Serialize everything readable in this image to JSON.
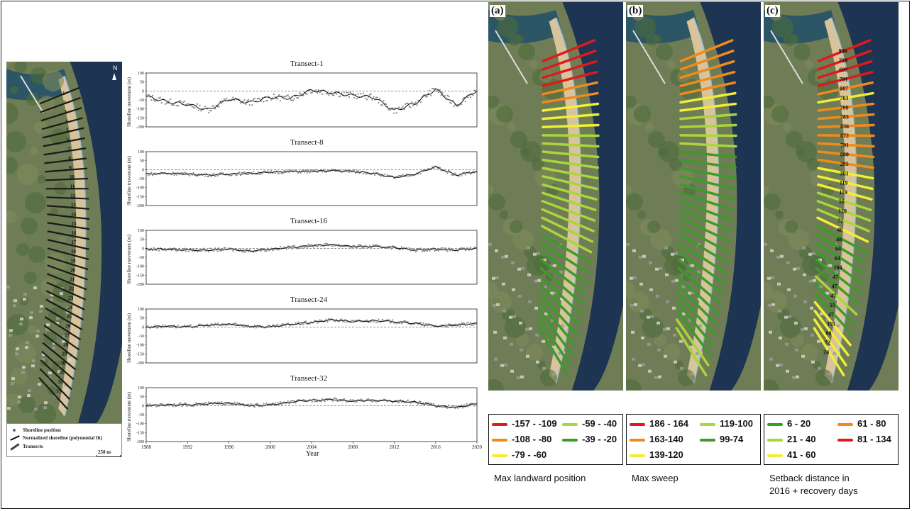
{
  "left_map": {
    "north_label": "N",
    "scale_label": "250 m",
    "transect_numbers": [
      "1",
      "2",
      "3",
      "4",
      "5",
      "6",
      "7",
      "8",
      "9",
      "10",
      "11",
      "12",
      "13",
      "14",
      "15",
      "16",
      "17",
      "18",
      "19",
      "20",
      "21",
      "22",
      "23",
      "24",
      "25",
      "26",
      "27",
      "28",
      "29",
      "30",
      "31",
      "32",
      "33"
    ],
    "legend": {
      "points": "Shoreline position",
      "fit": "Normalized shoreline (polynomial fit)",
      "transects": "Transects"
    }
  },
  "chart_data": [
    {
      "type": "scatter",
      "title": "Transect-1",
      "ylabel": "Shoreline movement (m)",
      "ylim": [
        -200,
        100
      ],
      "xlim": [
        1988,
        2020
      ],
      "y_ticks": [
        "100",
        "50",
        "0",
        "-50",
        "-100",
        "-150",
        "-200"
      ],
      "x": [
        1988,
        1990,
        1992,
        1994,
        1996,
        1998,
        2000,
        2002,
        2004,
        2006,
        2008,
        2010,
        2012,
        2014,
        2016,
        2018,
        2020
      ],
      "values": [
        -30,
        -60,
        -75,
        -105,
        -45,
        -65,
        -35,
        -40,
        5,
        -10,
        -25,
        -35,
        -110,
        -70,
        10,
        -80,
        5
      ]
    },
    {
      "type": "scatter",
      "title": "Transect-8",
      "ylabel": "Shoreline movement (m)",
      "ylim": [
        -200,
        100
      ],
      "xlim": [
        1988,
        2020
      ],
      "y_ticks": [
        "100",
        "50",
        "0",
        "-50",
        "-100",
        "-150",
        "-200"
      ],
      "x": [
        1988,
        1990,
        1992,
        1994,
        1996,
        1998,
        2000,
        2002,
        2004,
        2006,
        2008,
        2010,
        2012,
        2014,
        2016,
        2018,
        2020
      ],
      "values": [
        -25,
        -20,
        -25,
        -30,
        -25,
        -20,
        -15,
        -10,
        -10,
        -5,
        -10,
        -20,
        -45,
        -25,
        15,
        -30,
        -10
      ]
    },
    {
      "type": "scatter",
      "title": "Transect-16",
      "ylabel": "Shoreline movement (m)",
      "ylim": [
        -200,
        100
      ],
      "xlim": [
        1988,
        2020
      ],
      "y_ticks": [
        "100",
        "50",
        "0",
        "-50",
        "-100",
        "-150",
        "-200"
      ],
      "x": [
        1988,
        1990,
        1992,
        1994,
        1996,
        1998,
        2000,
        2002,
        2004,
        2006,
        2008,
        2010,
        2012,
        2014,
        2016,
        2018,
        2020
      ],
      "values": [
        -5,
        -5,
        -10,
        -10,
        -5,
        -15,
        -5,
        5,
        15,
        20,
        10,
        10,
        5,
        -10,
        -5,
        -10,
        0
      ]
    },
    {
      "type": "scatter",
      "title": "Transect-24",
      "ylabel": "Shoreline movement (m)",
      "ylim": [
        -200,
        100
      ],
      "xlim": [
        1988,
        2020
      ],
      "y_ticks": [
        "100",
        "50",
        "0",
        "-50",
        "-100",
        "-150",
        "-200"
      ],
      "x": [
        1988,
        1990,
        1992,
        1994,
        1996,
        1998,
        2000,
        2002,
        2004,
        2006,
        2008,
        2010,
        2012,
        2014,
        2016,
        2018,
        2020
      ],
      "values": [
        0,
        5,
        0,
        10,
        15,
        5,
        0,
        15,
        25,
        40,
        30,
        35,
        30,
        20,
        5,
        10,
        20
      ]
    },
    {
      "type": "scatter",
      "title": "Transect-32",
      "ylabel": "Shoreline movement (m)",
      "xlabel": "Year",
      "ylim": [
        -200,
        100
      ],
      "xlim": [
        1988,
        2020
      ],
      "y_ticks": [
        "100",
        "50",
        "0",
        "-50",
        "-100",
        "-150",
        "-200"
      ],
      "x_ticks": [
        "1988",
        "1992",
        "1996",
        "2000",
        "2004",
        "2008",
        "2012",
        "2016",
        "2020"
      ],
      "x": [
        1988,
        1990,
        1992,
        1994,
        1996,
        1998,
        2000,
        2002,
        2004,
        2006,
        2008,
        2010,
        2012,
        2014,
        2016,
        2018,
        2020
      ],
      "values": [
        0,
        5,
        5,
        10,
        15,
        0,
        5,
        20,
        30,
        35,
        25,
        30,
        25,
        20,
        0,
        -10,
        10
      ]
    }
  ],
  "panels": [
    {
      "letter": "(a)",
      "caption_lines": [
        "Max landward position"
      ],
      "legend": [
        {
          "label": "-157 - -109",
          "color": "#e0191c"
        },
        {
          "label": "-108 - -80",
          "color": "#f28a1a"
        },
        {
          "label": "-79 - -60",
          "color": "#f2ee35"
        },
        {
          "label": "-59 - -40",
          "color": "#a9d63a"
        },
        {
          "label": "-39 - -20",
          "color": "#3e9a2a"
        }
      ],
      "transect_classes": [
        0,
        0,
        0,
        0,
        1,
        1,
        2,
        2,
        2,
        3,
        3,
        3,
        3,
        3,
        3,
        3,
        3,
        3,
        3,
        3,
        3,
        4,
        4,
        4,
        4,
        4,
        4,
        4,
        4,
        4,
        4,
        4,
        4
      ]
    },
    {
      "letter": "(b)",
      "caption_lines": [
        "Max sweep"
      ],
      "legend": [
        {
          "label": "186 - 164",
          "color": "#e0191c"
        },
        {
          "label": "163-140",
          "color": "#f28a1a"
        },
        {
          "label": "139-120",
          "color": "#f2ee35"
        },
        {
          "label": "119-100",
          "color": "#a9d63a"
        },
        {
          "label": "99-74",
          "color": "#3e9a2a"
        }
      ],
      "transect_classes": [
        1,
        1,
        1,
        1,
        1,
        2,
        2,
        3,
        3,
        3,
        3,
        4,
        4,
        4,
        4,
        4,
        4,
        4,
        4,
        4,
        4,
        4,
        4,
        4,
        4,
        4,
        4,
        4,
        4,
        4,
        4,
        3,
        3
      ]
    },
    {
      "letter": "(c)",
      "caption_lines": [
        "Setback distance in",
        "2016 + recovery days"
      ],
      "legend": [
        {
          "label": "6 - 20",
          "color": "#3e9a2a"
        },
        {
          "label": "21 - 40",
          "color": "#a9d63a"
        },
        {
          "label": "41 - 60",
          "color": "#f2ee35"
        },
        {
          "label": "61 - 80",
          "color": "#f28a1a"
        },
        {
          "label": "81 - 134",
          "color": "#e0191c"
        }
      ],
      "transect_classes": [
        4,
        4,
        4,
        4,
        3,
        2,
        3,
        3,
        3,
        3,
        3,
        3,
        3,
        2,
        2,
        2,
        1,
        1,
        1,
        2,
        0,
        0,
        0,
        0,
        0,
        0,
        1,
        0,
        0,
        2,
        2,
        2,
        2
      ],
      "recovery_days": [
        "936",
        "728",
        "695",
        "791",
        "807",
        "703",
        "799",
        "783",
        "856",
        "872",
        "791",
        "800",
        "295",
        "303",
        "119",
        "119",
        "56",
        "128",
        "72",
        "48",
        "48",
        "64",
        "64",
        "104",
        "47",
        "47",
        "47",
        "55",
        "47",
        "191",
        "88",
        "72",
        "24"
      ]
    }
  ]
}
